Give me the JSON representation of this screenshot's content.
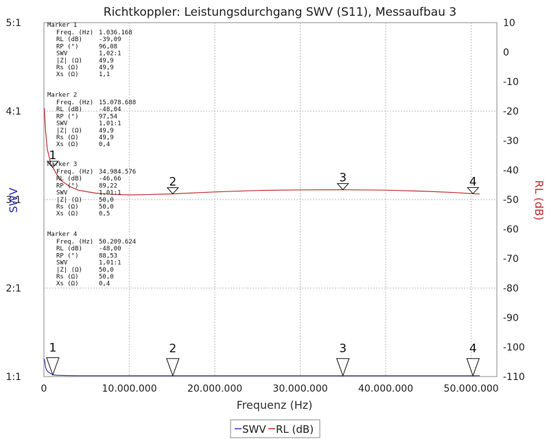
{
  "chart_data": {
    "type": "line",
    "title": "Richtkoppler: Leistungsdurchgang SWV (S11), Messaufbau 3",
    "xlabel": "Frequenz (Hz)",
    "ylabel_left": "SWV",
    "ylabel_right": "RL (dB)",
    "x_ticks": [
      {
        "value": 0,
        "label": "0"
      },
      {
        "value": 10000000,
        "label": "10.000.000"
      },
      {
        "value": 20000000,
        "label": "20.000.000"
      },
      {
        "value": 30000000,
        "label": "30.000.000"
      },
      {
        "value": 40000000,
        "label": "40.000.000"
      },
      {
        "value": 50000000,
        "label": "50.000.000"
      }
    ],
    "xlim": [
      0,
      53000000
    ],
    "y_left_ticks": [
      "1:1",
      "2:1",
      "3:1",
      "4:1",
      "5:1"
    ],
    "y_left_range": [
      1,
      5
    ],
    "y_right_ticks": [
      10,
      0,
      -10,
      -20,
      -30,
      -40,
      -50,
      -60,
      -70,
      -80,
      -90,
      -100,
      -110
    ],
    "y_right_range": [
      -110,
      10
    ],
    "grid": true,
    "legend": [
      "SWV",
      "RL (dB)"
    ],
    "legend_position": "bottom-center",
    "series": [
      {
        "name": "SWV",
        "axis": "left",
        "color": "#3a3aa8",
        "x": [
          50000,
          200000,
          400000,
          700000,
          1036168,
          1500000,
          2500000,
          4000000,
          6000000,
          10000000,
          15078688,
          20000000,
          25000000,
          30000000,
          34984576,
          40000000,
          45000000,
          50209624,
          51000000
        ],
        "y": [
          1.2,
          1.1,
          1.06,
          1.04,
          1.02,
          1.015,
          1.012,
          1.01,
          1.01,
          1.01,
          1.01,
          1.01,
          1.01,
          1.01,
          1.01,
          1.01,
          1.01,
          1.01,
          1.01
        ]
      },
      {
        "name": "RL (dB)",
        "axis": "right",
        "color": "#c03030",
        "x": [
          50000,
          200000,
          400000,
          700000,
          1036168,
          1500000,
          2000000,
          3000000,
          4000000,
          6000000,
          8000000,
          10000000,
          12000000,
          15078688,
          20000000,
          25000000,
          30000000,
          34984576,
          40000000,
          45000000,
          48000000,
          50209624,
          51000000
        ],
        "y": [
          -19,
          -27,
          -33,
          -36.5,
          -39.09,
          -41.5,
          -43.5,
          -45.5,
          -46.8,
          -47.8,
          -48.2,
          -48.4,
          -48.3,
          -48.04,
          -47.4,
          -46.9,
          -46.7,
          -46.66,
          -46.8,
          -47.2,
          -47.6,
          -48.0,
          -48.1
        ]
      }
    ],
    "markers": [
      {
        "id": "1",
        "freq": 1036168,
        "rl": -39.09,
        "swv": 1.02
      },
      {
        "id": "2",
        "freq": 15078688,
        "rl": -48.04,
        "swv": 1.01
      },
      {
        "id": "3",
        "freq": 34984576,
        "rl": -46.66,
        "swv": 1.01
      },
      {
        "id": "4",
        "freq": 50209624,
        "rl": -48.0,
        "swv": 1.01
      }
    ],
    "marker_table": [
      {
        "title": "Marker 1",
        "rows": [
          [
            "Freq. (Hz)",
            "1.036.168"
          ],
          [
            "RL (dB)",
            "-39,09"
          ],
          [
            "RP (°)",
            "96,08"
          ],
          [
            "SWV",
            "1,02:1"
          ],
          [
            "|Z| (Ω)",
            "49,9"
          ],
          [
            "Rs (Ω)",
            "49,9"
          ],
          [
            "Xs (Ω)",
            "1,1"
          ]
        ]
      },
      {
        "title": "Marker 2",
        "rows": [
          [
            "Freq. (Hz)",
            "15.078.688"
          ],
          [
            "RL (dB)",
            "-48,04"
          ],
          [
            "RP (°)",
            "97,54"
          ],
          [
            "SWV",
            "1,01:1"
          ],
          [
            "|Z| (Ω)",
            "49,9"
          ],
          [
            "Rs (Ω)",
            "49,9"
          ],
          [
            "Xs (Ω)",
            "0,4"
          ]
        ]
      },
      {
        "title": "Marker 3",
        "rows": [
          [
            "Freq. (Hz)",
            "34.984.576"
          ],
          [
            "RL (dB)",
            "-46,66"
          ],
          [
            "RP (°)",
            "89,22"
          ],
          [
            "SWV",
            "1,01:1"
          ],
          [
            "|Z| (Ω)",
            "50,0"
          ],
          [
            "Rs (Ω)",
            "50,0"
          ],
          [
            "Xs (Ω)",
            "0,5"
          ]
        ]
      },
      {
        "title": "Marker 4",
        "rows": [
          [
            "Freq. (Hz)",
            "50.209.624"
          ],
          [
            "RL (dB)",
            "-48,00"
          ],
          [
            "RP (°)",
            "88,53"
          ],
          [
            "SWV",
            "1,01:1"
          ],
          [
            "|Z| (Ω)",
            "50,0"
          ],
          [
            "Rs (Ω)",
            "50,0"
          ],
          [
            "Xs (Ω)",
            "0,4"
          ]
        ]
      }
    ]
  }
}
